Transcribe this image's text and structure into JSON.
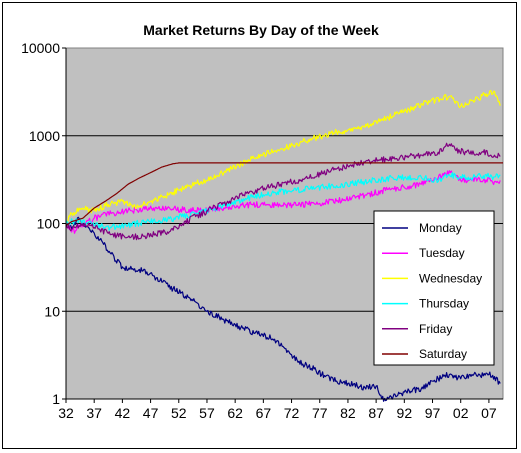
{
  "chart_data": {
    "type": "line",
    "title": "Market Returns By Day of the Week",
    "yscale": "log",
    "ylim": [
      1,
      10000
    ],
    "y_ticks": [
      1,
      10,
      100,
      1000,
      10000
    ],
    "y_tick_labels": [
      "1",
      "10",
      "100",
      "1000",
      "10000"
    ],
    "x_ticks": [
      1932,
      1937,
      1942,
      1947,
      1952,
      1957,
      1962,
      1967,
      1972,
      1977,
      1982,
      1987,
      1992,
      1997,
      2002,
      2007
    ],
    "x_tick_labels": [
      "32",
      "37",
      "42",
      "47",
      "52",
      "57",
      "62",
      "67",
      "72",
      "77",
      "82",
      "87",
      "92",
      "97",
      "02",
      "07"
    ],
    "xlim": [
      1932,
      2009.5
    ],
    "grid": "horizontal",
    "plot_background": "#c0c0c0",
    "legend_position": "right",
    "series": [
      {
        "name": "Monday",
        "color": "#000080",
        "x": [
          1932,
          1933,
          1934,
          1935,
          1936,
          1937,
          1938,
          1940,
          1942,
          1945,
          1948,
          1951,
          1954,
          1957,
          1960,
          1963,
          1966,
          1969,
          1972,
          1974,
          1976,
          1978,
          1980,
          1982,
          1985,
          1987,
          1988,
          1990,
          1992,
          1995,
          1997,
          2000,
          2002,
          2004,
          2007,
          2008,
          2009
        ],
        "y": [
          100,
          88,
          115,
          100,
          90,
          78,
          65,
          45,
          32,
          30,
          24,
          18,
          14,
          10,
          8,
          6.5,
          5.5,
          4.8,
          3.2,
          2.5,
          2.2,
          1.8,
          1.6,
          1.5,
          1.35,
          1.4,
          1.0,
          1.05,
          1.2,
          1.3,
          1.6,
          1.9,
          1.7,
          1.9,
          1.9,
          1.8,
          1.5
        ]
      },
      {
        "name": "Tuesday",
        "color": "#ff00ff",
        "x": [
          1932,
          1933,
          1935,
          1937,
          1940,
          1943,
          1946,
          1950,
          1955,
          1960,
          1965,
          1970,
          1975,
          1980,
          1985,
          1990,
          1995,
          1998,
          2000,
          2002,
          2005,
          2008,
          2009
        ],
        "y": [
          100,
          80,
          95,
          115,
          130,
          140,
          145,
          150,
          140,
          150,
          165,
          160,
          165,
          180,
          210,
          250,
          280,
          330,
          400,
          310,
          320,
          300,
          310
        ]
      },
      {
        "name": "Wednesday",
        "color": "#ffff00",
        "x": [
          1932,
          1933,
          1935,
          1937,
          1939,
          1942,
          1945,
          1948,
          1952,
          1956,
          1960,
          1965,
          1970,
          1975,
          1980,
          1984,
          1988,
          1992,
          1996,
          2000,
          2002,
          2005,
          2008,
          2009
        ],
        "y": [
          100,
          130,
          150,
          140,
          160,
          180,
          155,
          190,
          240,
          300,
          380,
          550,
          700,
          900,
          1100,
          1200,
          1500,
          1900,
          2400,
          2800,
          2200,
          2700,
          3200,
          2200
        ]
      },
      {
        "name": "Thursday",
        "color": "#00ffff",
        "x": [
          1932,
          1934,
          1937,
          1940,
          1943,
          1946,
          1950,
          1955,
          1960,
          1965,
          1970,
          1975,
          1980,
          1985,
          1990,
          1995,
          1998,
          2000,
          2003,
          2006,
          2008,
          2009
        ],
        "y": [
          100,
          110,
          95,
          90,
          95,
          105,
          110,
          130,
          160,
          200,
          230,
          250,
          270,
          300,
          330,
          340,
          300,
          360,
          330,
          350,
          340,
          360
        ]
      },
      {
        "name": "Friday",
        "color": "#800080",
        "x": [
          1932,
          1933,
          1935,
          1937,
          1940,
          1943,
          1946,
          1950,
          1955,
          1960,
          1965,
          1970,
          1975,
          1980,
          1985,
          1990,
          1995,
          1998,
          2000,
          2001,
          2003,
          2006,
          2008,
          2009
        ],
        "y": [
          100,
          85,
          100,
          90,
          75,
          70,
          72,
          80,
          120,
          170,
          230,
          280,
          330,
          420,
          500,
          550,
          600,
          650,
          800,
          700,
          650,
          650,
          600,
          580
        ]
      },
      {
        "name": "Saturday",
        "color": "#800000",
        "x": [
          1932,
          1933,
          1934,
          1935,
          1937,
          1939,
          1941,
          1943,
          1945,
          1947,
          1949,
          1951,
          1952,
          1980,
          2009.5
        ],
        "y": [
          95,
          105,
          110,
          115,
          150,
          180,
          220,
          280,
          330,
          380,
          440,
          480,
          490,
          490,
          490
        ]
      }
    ]
  }
}
